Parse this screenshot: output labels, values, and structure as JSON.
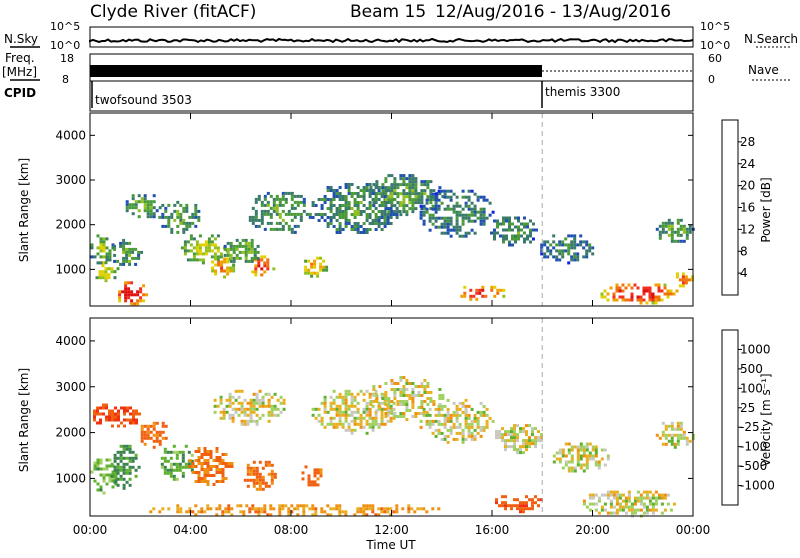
{
  "header": {
    "station": "Clyde River (fitACF)",
    "beam": "Beam 15",
    "date_range": "12/Aug/2016 - 13/Aug/2016"
  },
  "strips": {
    "nsky_label": "N.Sky",
    "nsky_ticks": [
      "10^5",
      "10^0"
    ],
    "nsearch_label": "N.Search",
    "nsearch_ticks": [
      "10^5",
      "10^0"
    ],
    "freq_label": "Freq.",
    "freq_unit": "[MHz]",
    "freq_ticks": [
      "18",
      "8"
    ],
    "nave_label": "Nave",
    "nave_ticks": [
      "60",
      "0"
    ],
    "cpid_label": "CPID",
    "cpid_modes": [
      {
        "name": "twofsound 3503",
        "start_hour": 0,
        "end_hour": 18
      },
      {
        "name": "themis 3300",
        "start_hour": 18,
        "end_hour": 24
      }
    ]
  },
  "axes": {
    "xlabel": "Time UT",
    "x_ticks": [
      "00:00",
      "04:00",
      "08:00",
      "12:00",
      "16:00",
      "20:00",
      "00:00"
    ],
    "ylabel": "Slant Range [km]",
    "y_ticks": [
      "1000",
      "2000",
      "3000",
      "4000"
    ]
  },
  "colorbars": {
    "power": {
      "label": "Power [dB]",
      "ticks": [
        "4",
        "8",
        "12",
        "16",
        "20",
        "24",
        "28"
      ],
      "colors": [
        "#1020e0",
        "#2050b0",
        "#3a7a6a",
        "#4a9a3a",
        "#90c020",
        "#e0d000",
        "#f0a000",
        "#f07010",
        "#f03020",
        "#e01010"
      ]
    },
    "velocity": {
      "label": "Velocity [m s⁻¹]",
      "ticks": [
        "1000",
        "500",
        "100",
        "25",
        "-25",
        "-100",
        "-500",
        "-1000"
      ],
      "colors": [
        "#2040b0",
        "#305a90",
        "#3a8050",
        "#60b030",
        "#a0d060",
        "#c8c8c0",
        "#c8c8c0",
        "#e8b020",
        "#f09010",
        "#f06010",
        "#f03010",
        "#e01010"
      ]
    }
  },
  "chart_data": [
    {
      "type": "heatmap",
      "title": "Power",
      "xlabel": "Time UT",
      "ylabel": "Slant Range [km]",
      "xlim_hours": [
        0,
        24
      ],
      "ylim_km": [
        180,
        4500
      ],
      "clim_db": [
        0,
        30
      ],
      "blobs": [
        {
          "t": 1.6,
          "r": 500,
          "dt": 0.6,
          "dr": 300,
          "v": 28
        },
        {
          "t": 0.6,
          "r": 1000,
          "dt": 0.5,
          "dr": 250,
          "v": 16
        },
        {
          "t": 0.4,
          "r": 1500,
          "dt": 0.5,
          "dr": 350,
          "v": 12
        },
        {
          "t": 1.4,
          "r": 1400,
          "dt": 0.6,
          "dr": 350,
          "v": 10
        },
        {
          "t": 2.1,
          "r": 2450,
          "dt": 0.8,
          "dr": 300,
          "v": 10
        },
        {
          "t": 3.5,
          "r": 2200,
          "dt": 0.9,
          "dr": 400,
          "v": 10
        },
        {
          "t": 4.5,
          "r": 1500,
          "dt": 1.0,
          "dr": 350,
          "v": 14
        },
        {
          "t": 5.2,
          "r": 1100,
          "dt": 0.5,
          "dr": 300,
          "v": 20
        },
        {
          "t": 6.8,
          "r": 1100,
          "dt": 0.5,
          "dr": 280,
          "v": 24
        },
        {
          "t": 6.0,
          "r": 1450,
          "dt": 0.8,
          "dr": 300,
          "v": 12
        },
        {
          "t": 7.5,
          "r": 2300,
          "dt": 1.3,
          "dr": 500,
          "v": 10
        },
        {
          "t": 8.9,
          "r": 1100,
          "dt": 0.5,
          "dr": 250,
          "v": 18
        },
        {
          "t": 10.5,
          "r": 2400,
          "dt": 1.8,
          "dr": 600,
          "v": 9
        },
        {
          "t": 12.5,
          "r": 2700,
          "dt": 1.5,
          "dr": 500,
          "v": 10
        },
        {
          "t": 14.5,
          "r": 2300,
          "dt": 1.5,
          "dr": 550,
          "v": 8
        },
        {
          "t": 16.8,
          "r": 1900,
          "dt": 1.0,
          "dr": 350,
          "v": 9
        },
        {
          "t": 19.0,
          "r": 1500,
          "dt": 1.2,
          "dr": 350,
          "v": 8
        },
        {
          "t": 23.2,
          "r": 1900,
          "dt": 0.8,
          "dr": 300,
          "v": 10
        },
        {
          "t": 21.8,
          "r": 500,
          "dt": 1.6,
          "dr": 250,
          "v": 26
        },
        {
          "t": 15.5,
          "r": 500,
          "dt": 1.0,
          "dr": 200,
          "v": 24
        },
        {
          "t": 23.6,
          "r": 800,
          "dt": 0.4,
          "dr": 200,
          "v": 22
        }
      ]
    },
    {
      "type": "heatmap",
      "title": "Velocity",
      "xlabel": "Time UT",
      "ylabel": "Slant Range [km]",
      "xlim_hours": [
        0,
        24
      ],
      "ylim_km": [
        180,
        4500
      ],
      "clim_ms": [
        -1000,
        1000
      ],
      "blobs": [
        {
          "t": 0.5,
          "r": 1100,
          "dt": 0.6,
          "dr": 400,
          "v": 150
        },
        {
          "t": 1.3,
          "r": 1300,
          "dt": 0.6,
          "dr": 500,
          "v": 300
        },
        {
          "t": 1.0,
          "r": 2400,
          "dt": 1.0,
          "dr": 300,
          "v": -500
        },
        {
          "t": 2.5,
          "r": 2000,
          "dt": 0.6,
          "dr": 300,
          "v": -300
        },
        {
          "t": 3.4,
          "r": 1400,
          "dt": 0.7,
          "dr": 400,
          "v": 200
        },
        {
          "t": 4.7,
          "r": 1300,
          "dt": 0.9,
          "dr": 450,
          "v": -250
        },
        {
          "t": 6.3,
          "r": 2600,
          "dt": 1.5,
          "dr": 400,
          "v": 0
        },
        {
          "t": 6.7,
          "r": 1100,
          "dt": 0.7,
          "dr": 350,
          "v": -300
        },
        {
          "t": 8.8,
          "r": 1100,
          "dt": 0.5,
          "dr": 250,
          "v": -350
        },
        {
          "t": 10.5,
          "r": 2500,
          "dt": 1.8,
          "dr": 500,
          "v": 0
        },
        {
          "t": 12.5,
          "r": 2800,
          "dt": 1.5,
          "dr": 500,
          "v": 0
        },
        {
          "t": 14.5,
          "r": 2300,
          "dt": 1.5,
          "dr": 500,
          "v": 0
        },
        {
          "t": 17.0,
          "r": 1900,
          "dt": 1.0,
          "dr": 350,
          "v": 0
        },
        {
          "t": 19.5,
          "r": 1500,
          "dt": 1.2,
          "dr": 350,
          "v": 0
        },
        {
          "t": 23.2,
          "r": 2000,
          "dt": 0.8,
          "dr": 300,
          "v": 0
        },
        {
          "t": 21.5,
          "r": 500,
          "dt": 2.0,
          "dr": 300,
          "v": 0
        },
        {
          "t": 8.0,
          "r": 350,
          "dt": 6.0,
          "dr": 150,
          "v": -150
        },
        {
          "t": 17.0,
          "r": 500,
          "dt": 1.0,
          "dr": 200,
          "v": -400
        }
      ]
    }
  ]
}
